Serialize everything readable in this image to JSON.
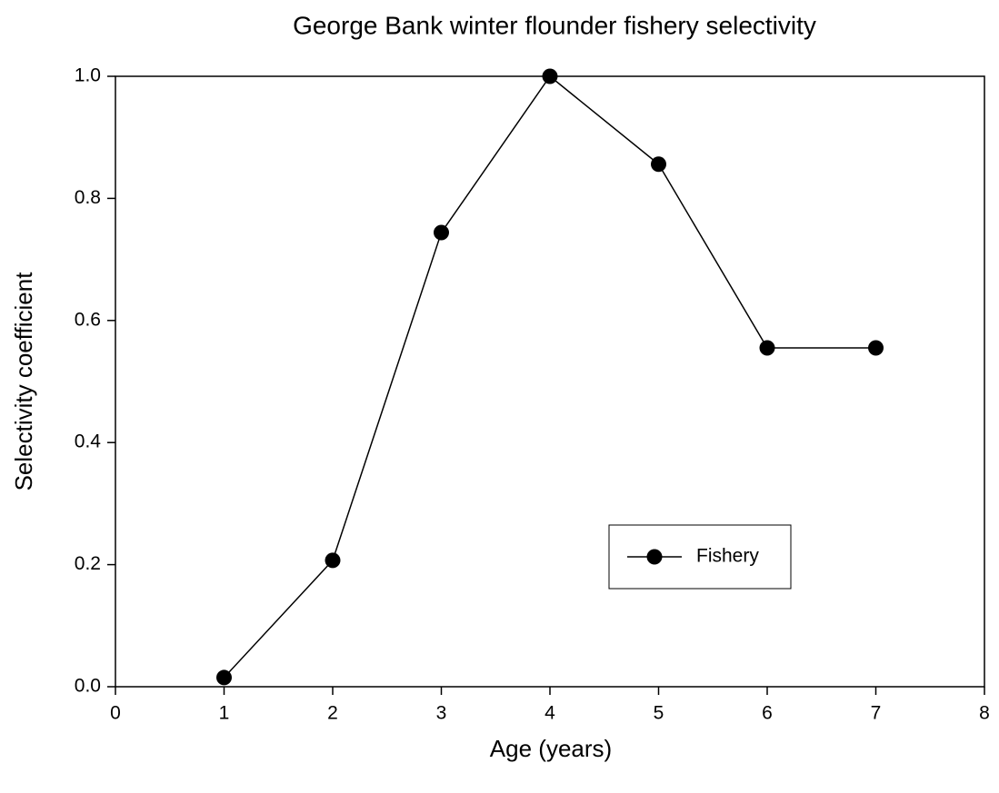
{
  "chart_data": {
    "type": "line",
    "title": "George Bank winter flounder fishery selectivity",
    "x_label": "Age (years)",
    "y_label": "Selectivity coefficient",
    "x": [
      1,
      2,
      3,
      4,
      5,
      6,
      7
    ],
    "series": [
      {
        "name": "Fishery",
        "color": "#000000",
        "values": [
          0.015,
          0.207,
          0.744,
          1.0,
          0.856,
          0.555,
          0.555
        ]
      }
    ],
    "xlim": [
      0,
      8
    ],
    "xticks": [
      0,
      1,
      2,
      3,
      4,
      5,
      6,
      7,
      8
    ],
    "ylim": [
      0,
      1
    ],
    "yticks": [
      {
        "value": 0,
        "label": "0.0"
      },
      0.2,
      0.4,
      0.6,
      0.8,
      {
        "value": 1,
        "label": "1.0"
      }
    ],
    "grid": false,
    "legend": "lower right"
  }
}
